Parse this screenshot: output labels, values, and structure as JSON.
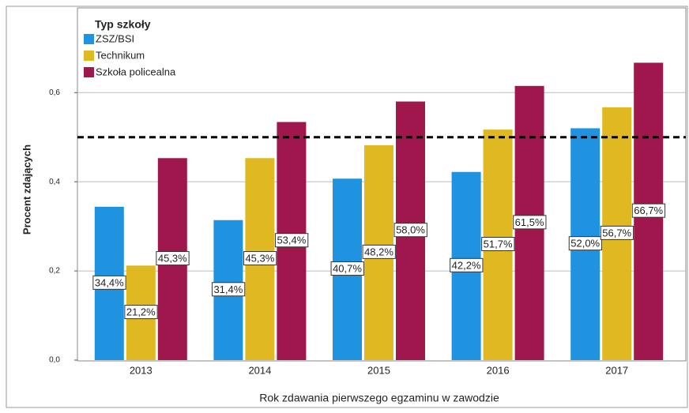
{
  "chart_data": {
    "type": "bar",
    "categories": [
      "2013",
      "2014",
      "2015",
      "2016",
      "2017"
    ],
    "series": [
      {
        "name": "ZSZ/BSI",
        "color": "#1f93e0",
        "values": [
          0.344,
          0.314,
          0.407,
          0.422,
          0.52
        ],
        "value_labels": [
          "34,4%",
          "31,4%",
          "40,7%",
          "42,2%",
          "52,0%"
        ]
      },
      {
        "name": "Technikum",
        "color": "#e0b822",
        "values": [
          0.212,
          0.453,
          0.482,
          0.517,
          0.567
        ],
        "value_labels": [
          "21,2%",
          "45,3%",
          "48,2%",
          "51,7%",
          "56,7%"
        ]
      },
      {
        "name": "Szkoła policealna",
        "color": "#a0174e",
        "values": [
          0.453,
          0.534,
          0.58,
          0.615,
          0.667
        ],
        "value_labels": [
          "45,3%",
          "53,4%",
          "58,0%",
          "61,5%",
          "66,7%"
        ]
      }
    ],
    "legend_title": "Typ szkoły",
    "legend": "top-left",
    "xlabel": "Rok zdawania pierwszego egzaminu w zawodzie",
    "ylabel": "Procent zdających",
    "ylim": [
      0,
      0.79
    ],
    "yticks": [
      {
        "value": 0,
        "label": "0,0"
      },
      {
        "value": 0.2,
        "label": "0,2"
      },
      {
        "value": 0.4,
        "label": "0,4"
      },
      {
        "value": 0.6,
        "label": "0,6"
      }
    ],
    "grid": true,
    "reference_line": 0.5
  }
}
